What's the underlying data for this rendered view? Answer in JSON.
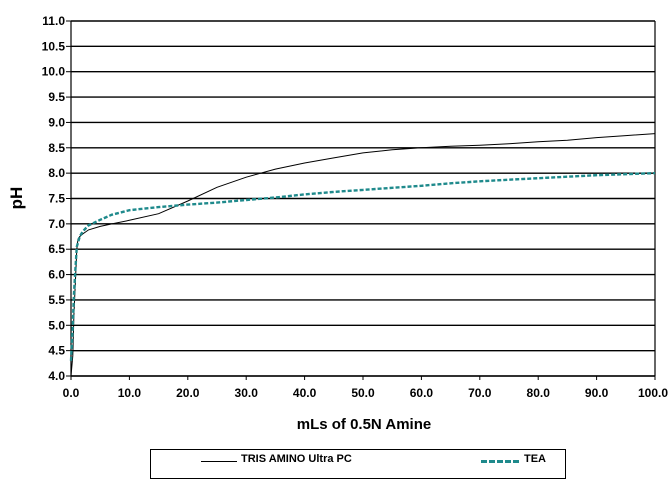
{
  "chart_data": {
    "type": "line",
    "xlabel": "mLs of 0.5N Amine",
    "ylabel": "pH",
    "xlim": [
      0,
      100
    ],
    "ylim": [
      4.0,
      11.0
    ],
    "x_ticks": [
      "0.0",
      "10.0",
      "20.0",
      "30.0",
      "40.0",
      "50.0",
      "60.0",
      "70.0",
      "80.0",
      "90.0",
      "100.0"
    ],
    "y_ticks": [
      "4.0",
      "4.5",
      "5.0",
      "5.5",
      "6.0",
      "6.5",
      "7.0",
      "7.5",
      "8.0",
      "8.5",
      "9.0",
      "9.5",
      "10.0",
      "10.5",
      "11.0"
    ],
    "grid": "horizontal",
    "legend_position": "bottom",
    "series": [
      {
        "name": "TRIS AMINO Ultra PC",
        "color": "#000000",
        "style": "solid",
        "x": [
          0.0,
          0.3,
          0.5,
          0.8,
          1.0,
          1.2,
          1.5,
          2.0,
          3.0,
          5.0,
          7.0,
          10.0,
          15.0,
          20.0,
          25.0,
          30.0,
          35.0,
          40.0,
          45.0,
          50.0,
          55.0,
          60.0,
          65.0,
          70.0,
          75.0,
          80.0,
          85.0,
          90.0,
          95.0,
          100.0
        ],
        "y": [
          4.0,
          4.4,
          5.2,
          6.0,
          6.5,
          6.7,
          6.75,
          6.8,
          6.88,
          6.95,
          7.0,
          7.07,
          7.2,
          7.45,
          7.72,
          7.92,
          8.08,
          8.2,
          8.3,
          8.4,
          8.46,
          8.5,
          8.53,
          8.55,
          8.58,
          8.62,
          8.65,
          8.7,
          8.74,
          8.78
        ]
      },
      {
        "name": "TEA",
        "color": "#1F8A8C",
        "style": "dashed",
        "x": [
          0.0,
          0.3,
          0.5,
          0.8,
          1.0,
          1.5,
          2.0,
          3.0,
          5.0,
          7.0,
          10.0,
          15.0,
          20.0,
          25.0,
          30.0,
          35.0,
          40.0,
          45.0,
          50.0,
          55.0,
          60.0,
          65.0,
          70.0,
          75.0,
          80.0,
          85.0,
          90.0,
          95.0,
          100.0
        ],
        "y": [
          4.3,
          5.0,
          5.6,
          6.2,
          6.55,
          6.75,
          6.85,
          6.97,
          7.08,
          7.18,
          7.27,
          7.33,
          7.38,
          7.42,
          7.47,
          7.52,
          7.58,
          7.63,
          7.67,
          7.71,
          7.75,
          7.8,
          7.84,
          7.87,
          7.9,
          7.93,
          7.96,
          7.98,
          8.0
        ]
      }
    ]
  }
}
